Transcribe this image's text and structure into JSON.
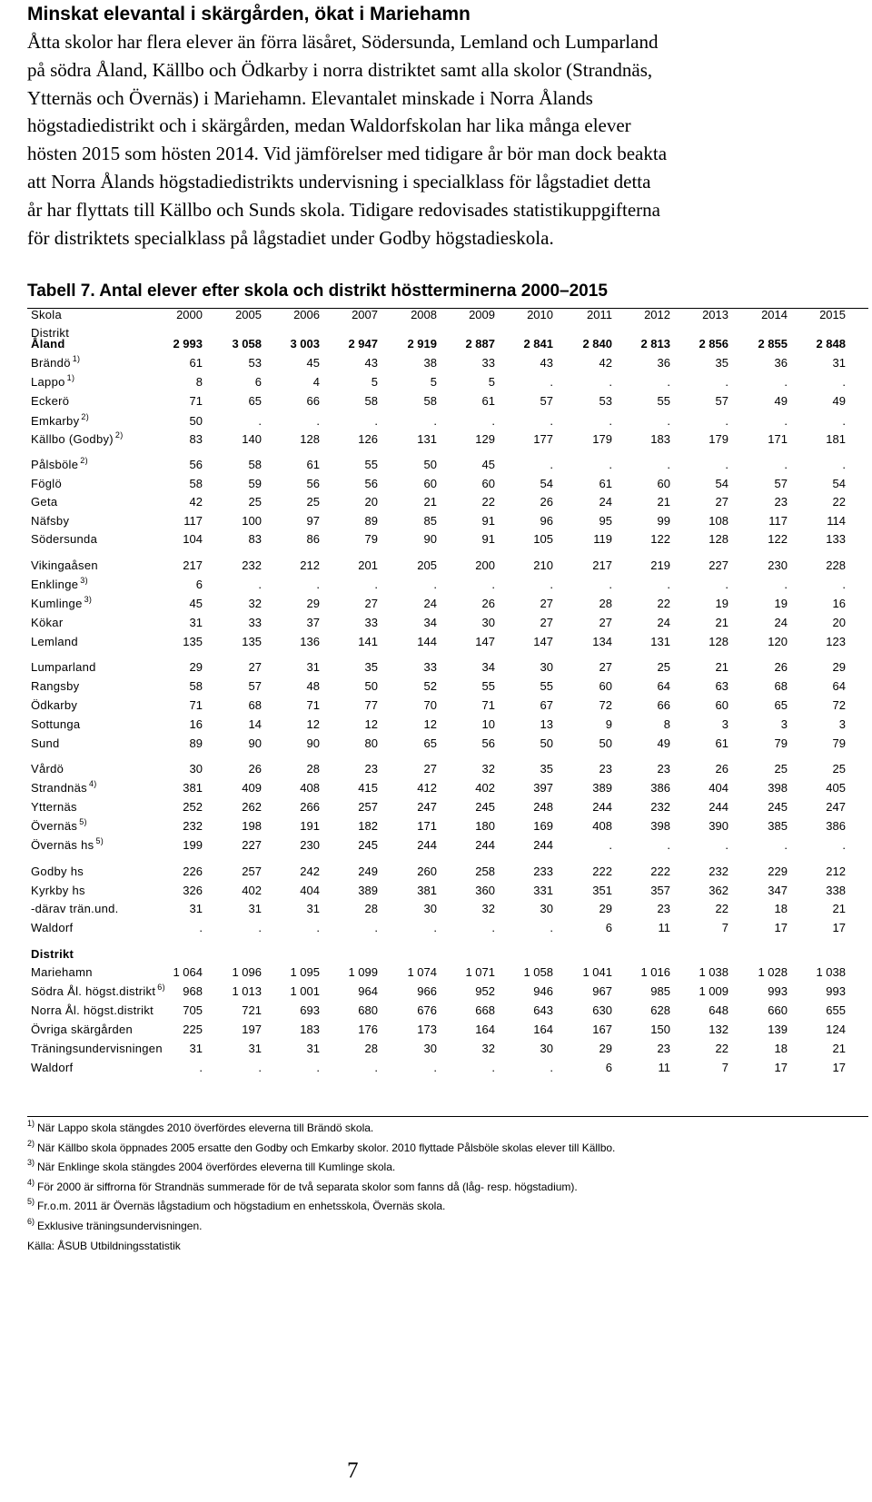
{
  "heading": "Minskat elevantal i skärgården, ökat i Mariehamn",
  "paragraph_lines": [
    "Åtta skolor har flera elever än förra läsåret, Södersunda, Lemland och Lumparland",
    "på södra Åland, Källbo och Ödkarby i norra distriktet samt alla skolor (Strandnäs,",
    "Ytternäs och Övernäs) i Mariehamn. Elevantalet minskade i Norra Ålands",
    "högstadiedistrikt och i skärgården, medan Waldorfskolan har lika många elever",
    "hösten 2015 som hösten 2014. Vid jämförelser med tidigare år bör man dock beakta",
    "att Norra Ålands högstadiedistrikts undervisning i specialklass för lågstadiet detta",
    "år har flyttats till Källbo och Sunds skola. Tidigare redovisades statistikuppgifterna",
    "för distriktets specialklass på lågstadiet under Godby högstadieskola."
  ],
  "table_title": "Tabell 7. Antal elever efter skola och distrikt höstterminerna 2000–2015",
  "table": {
    "header_label": "Skola",
    "sub_header_label": "Distrikt",
    "years": [
      "2000",
      "2005",
      "2006",
      "2007",
      "2008",
      "2009",
      "2010",
      "2011",
      "2012",
      "2013",
      "2014",
      "2015"
    ],
    "rows": [
      {
        "label": "Åland",
        "bold": true,
        "values": [
          "2 993",
          "3 058",
          "3 003",
          "2 947",
          "2 919",
          "2 887",
          "2 841",
          "2 840",
          "2 813",
          "2 856",
          "2 855",
          "2 848"
        ]
      },
      {
        "label": "Brändö",
        "note": "1)",
        "values": [
          "61",
          "53",
          "45",
          "43",
          "38",
          "33",
          "43",
          "42",
          "36",
          "35",
          "36",
          "31"
        ]
      },
      {
        "label": "Lappo",
        "note": "1)",
        "values": [
          "8",
          "6",
          "4",
          "5",
          "5",
          "5",
          ".",
          ".",
          ".",
          ".",
          ".",
          "."
        ]
      },
      {
        "label": "Eckerö",
        "values": [
          "71",
          "65",
          "66",
          "58",
          "58",
          "61",
          "57",
          "53",
          "55",
          "57",
          "49",
          "49"
        ]
      },
      {
        "label": "Emkarby",
        "note": "2)",
        "values": [
          "50",
          ".",
          ".",
          ".",
          ".",
          ".",
          ".",
          ".",
          ".",
          ".",
          ".",
          "."
        ]
      },
      {
        "label": "Källbo (Godby)",
        "note": "2)",
        "values": [
          "83",
          "140",
          "128",
          "126",
          "131",
          "129",
          "177",
          "179",
          "183",
          "179",
          "171",
          "181"
        ]
      },
      {
        "label": "Pålsböle",
        "note": "2)",
        "values": [
          "56",
          "58",
          "61",
          "55",
          "50",
          "45",
          ".",
          ".",
          ".",
          ".",
          ".",
          "."
        ]
      },
      {
        "label": "Föglö",
        "values": [
          "58",
          "59",
          "56",
          "56",
          "60",
          "60",
          "54",
          "61",
          "60",
          "54",
          "57",
          "54"
        ]
      },
      {
        "label": "Geta",
        "values": [
          "42",
          "25",
          "25",
          "20",
          "21",
          "22",
          "26",
          "24",
          "21",
          "27",
          "23",
          "22"
        ]
      },
      {
        "label": "Näfsby",
        "values": [
          "117",
          "100",
          "97",
          "89",
          "85",
          "91",
          "96",
          "95",
          "99",
          "108",
          "117",
          "114"
        ]
      },
      {
        "label": "Södersunda",
        "values": [
          "104",
          "83",
          "86",
          "79",
          "90",
          "91",
          "105",
          "119",
          "122",
          "128",
          "122",
          "133"
        ]
      },
      {
        "label": "Vikingaåsen",
        "values": [
          "217",
          "232",
          "212",
          "201",
          "205",
          "200",
          "210",
          "217",
          "219",
          "227",
          "230",
          "228"
        ]
      },
      {
        "label": "Enklinge",
        "note": "3)",
        "values": [
          "6",
          ".",
          ".",
          ".",
          ".",
          ".",
          ".",
          ".",
          ".",
          ".",
          ".",
          "."
        ]
      },
      {
        "label": "Kumlinge",
        "note": "3)",
        "values": [
          "45",
          "32",
          "29",
          "27",
          "24",
          "26",
          "27",
          "28",
          "22",
          "19",
          "19",
          "16"
        ]
      },
      {
        "label": "Kökar",
        "values": [
          "31",
          "33",
          "37",
          "33",
          "34",
          "30",
          "27",
          "27",
          "24",
          "21",
          "24",
          "20"
        ]
      },
      {
        "label": "Lemland",
        "values": [
          "135",
          "135",
          "136",
          "141",
          "144",
          "147",
          "147",
          "134",
          "131",
          "128",
          "120",
          "123"
        ]
      },
      {
        "label": "Lumparland",
        "values": [
          "29",
          "27",
          "31",
          "35",
          "33",
          "34",
          "30",
          "27",
          "25",
          "21",
          "26",
          "29"
        ]
      },
      {
        "label": "Rangsby",
        "values": [
          "58",
          "57",
          "48",
          "50",
          "52",
          "55",
          "55",
          "60",
          "64",
          "63",
          "68",
          "64"
        ]
      },
      {
        "label": "Ödkarby",
        "values": [
          "71",
          "68",
          "71",
          "77",
          "70",
          "71",
          "67",
          "72",
          "66",
          "60",
          "65",
          "72"
        ]
      },
      {
        "label": "Sottunga",
        "values": [
          "16",
          "14",
          "12",
          "12",
          "12",
          "10",
          "13",
          "9",
          "8",
          "3",
          "3",
          "3"
        ]
      },
      {
        "label": "Sund",
        "values": [
          "89",
          "90",
          "90",
          "80",
          "65",
          "56",
          "50",
          "50",
          "49",
          "61",
          "79",
          "79"
        ]
      },
      {
        "label": "Vårdö",
        "values": [
          "30",
          "26",
          "28",
          "23",
          "27",
          "32",
          "35",
          "23",
          "23",
          "26",
          "25",
          "25"
        ]
      },
      {
        "label": "Strandnäs",
        "note": "4)",
        "values": [
          "381",
          "409",
          "408",
          "415",
          "412",
          "402",
          "397",
          "389",
          "386",
          "404",
          "398",
          "405"
        ]
      },
      {
        "label": "Ytternäs",
        "values": [
          "252",
          "262",
          "266",
          "257",
          "247",
          "245",
          "248",
          "244",
          "232",
          "244",
          "245",
          "247"
        ]
      },
      {
        "label": "Övernäs",
        "note": "5)",
        "values": [
          "232",
          "198",
          "191",
          "182",
          "171",
          "180",
          "169",
          "408",
          "398",
          "390",
          "385",
          "386"
        ]
      },
      {
        "label": "Övernäs hs",
        "note": "5)",
        "values": [
          "199",
          "227",
          "230",
          "245",
          "244",
          "244",
          "244",
          ".",
          ".",
          ".",
          ".",
          "."
        ]
      },
      {
        "label": "Godby hs",
        "values": [
          "226",
          "257",
          "242",
          "249",
          "260",
          "258",
          "233",
          "222",
          "222",
          "232",
          "229",
          "212"
        ]
      },
      {
        "label": "Kyrkby hs",
        "values": [
          "326",
          "402",
          "404",
          "389",
          "381",
          "360",
          "331",
          "351",
          "357",
          "362",
          "347",
          "338"
        ]
      },
      {
        "label": "-därav trän.und.",
        "values": [
          "31",
          "31",
          "31",
          "28",
          "30",
          "32",
          "30",
          "29",
          "23",
          "22",
          "18",
          "21"
        ]
      },
      {
        "label": "Waldorf",
        "values": [
          ".",
          ".",
          ".",
          ".",
          ".",
          ".",
          ".",
          "6",
          "11",
          "7",
          "17",
          "17"
        ]
      },
      {
        "label": "Distrikt",
        "bold": true,
        "values": []
      },
      {
        "label": "Mariehamn",
        "values": [
          "1 064",
          "1 096",
          "1 095",
          "1 099",
          "1 074",
          "1 071",
          "1 058",
          "1 041",
          "1 016",
          "1 038",
          "1 028",
          "1 038"
        ]
      },
      {
        "label": "Södra Ål. högst.distrikt",
        "note": "6)",
        "values": [
          "968",
          "1 013",
          "1 001",
          "964",
          "966",
          "952",
          "946",
          "967",
          "985",
          "1 009",
          "993",
          "993"
        ]
      },
      {
        "label": "Norra Ål. högst.distrikt",
        "values": [
          "705",
          "721",
          "693",
          "680",
          "676",
          "668",
          "643",
          "630",
          "628",
          "648",
          "660",
          "655"
        ]
      },
      {
        "label": "Övriga skärgården",
        "values": [
          "225",
          "197",
          "183",
          "176",
          "173",
          "164",
          "164",
          "167",
          "150",
          "132",
          "139",
          "124"
        ]
      },
      {
        "label": "Träningsundervisningen",
        "values": [
          "31",
          "31",
          "31",
          "28",
          "30",
          "32",
          "30",
          "29",
          "23",
          "22",
          "18",
          "21"
        ]
      },
      {
        "label": "Waldorf",
        "values": [
          ".",
          ".",
          ".",
          ".",
          ".",
          ".",
          ".",
          "6",
          "11",
          "7",
          "17",
          "17"
        ]
      }
    ]
  },
  "footnotes": [
    {
      "mark": "1)",
      "text": "När Lappo skola stängdes 2010 överfördes eleverna till Brändö skola."
    },
    {
      "mark": "2)",
      "text": "När Källbo skola öppnades 2005 ersatte den Godby och Emkarby skolor. 2010 flyttade Pålsböle skolas elever till Källbo."
    },
    {
      "mark": "3)",
      "text": "När Enklinge skola stängdes 2004 överfördes eleverna till Kumlinge skola."
    },
    {
      "mark": "4)",
      "text": "För 2000 är siffrorna för Strandnäs summerade för de två separata skolor som fanns då (låg- resp. högstadium)."
    },
    {
      "mark": "5)",
      "text": "Fr.o.m. 2011 är Övernäs lågstadium och högstadium en enhetsskola, Övernäs skola."
    },
    {
      "mark": "6)",
      "text": "Exklusive träningsundervisningen."
    },
    {
      "mark": "",
      "text": "Källa: ÅSUB Utbildningsstatistik"
    }
  ],
  "page_number": "7"
}
